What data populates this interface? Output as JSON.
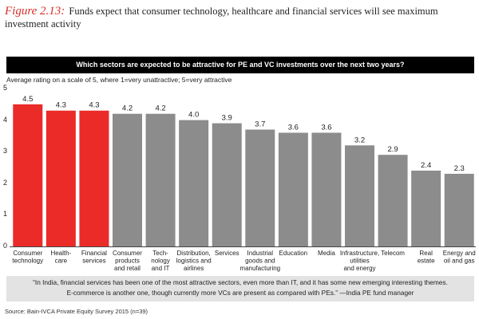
{
  "header": {
    "figure_label": "Figure 2.13:",
    "figure_title": "Funds expect that consumer technology, healthcare and financial services will see maximum investment activity"
  },
  "banner": {
    "question": "Which sectors are expected to be attractive for PE and VC investments over the next two years?"
  },
  "axis_note": "Average rating on a scale of 5, where 1=very unattractive; 5=very attractive",
  "quote": {
    "line1": "“In India, financial services has been one of the most attractive sectors, even more than IT, and it has some new emerging interesting themes.",
    "line2": "E-commerce is another one, though currently more VCs are present as compared with PEs.” —India PE fund manager"
  },
  "source": "Source: Bain-IVCA Private Equity Survey 2015 (n=39)",
  "colors": {
    "highlight": "#ea2b28",
    "normal": "#8c8c8c",
    "banner_bg": "#000000",
    "figure_label": "#d4302b"
  },
  "chart_data": {
    "type": "bar",
    "title": "Which sectors are expected to be attractive for PE and VC investments over the next two years?",
    "ylabel": "Average rating on a scale of 5, where 1=very unattractive; 5=very attractive",
    "xlabel": "",
    "ylim": [
      0,
      5
    ],
    "yticks": [
      "0",
      "1",
      "2",
      "3",
      "4",
      "5"
    ],
    "categories": [
      [
        "Consumer",
        "technology"
      ],
      [
        "Health-",
        "care"
      ],
      [
        "Financial",
        "services"
      ],
      [
        "Consumer",
        "products",
        "and retail"
      ],
      [
        "Tech-",
        "nology",
        "and IT"
      ],
      [
        "Distribution,",
        "logistics and",
        "airlines"
      ],
      [
        "Services"
      ],
      [
        "Industrial",
        "goods and",
        "manufacturing"
      ],
      [
        "Education"
      ],
      [
        "Media"
      ],
      [
        "Infrastructure,",
        "utilities",
        "and energy"
      ],
      [
        "Telecom"
      ],
      [
        "Real",
        "estate"
      ],
      [
        "Energy and",
        "oil and gas"
      ]
    ],
    "values": [
      4.5,
      4.3,
      4.3,
      4.2,
      4.2,
      4.0,
      3.9,
      3.7,
      3.6,
      3.6,
      3.2,
      2.9,
      2.4,
      2.3
    ],
    "value_labels": [
      "4.5",
      "4.3",
      "4.3",
      "4.2",
      "4.2",
      "4.0",
      "3.9",
      "3.7",
      "3.6",
      "3.6",
      "3.2",
      "2.9",
      "2.4",
      "2.3"
    ],
    "highlighted": [
      true,
      true,
      true,
      false,
      false,
      false,
      false,
      false,
      false,
      false,
      false,
      false,
      false,
      false
    ],
    "grid": false,
    "legend": "none"
  }
}
